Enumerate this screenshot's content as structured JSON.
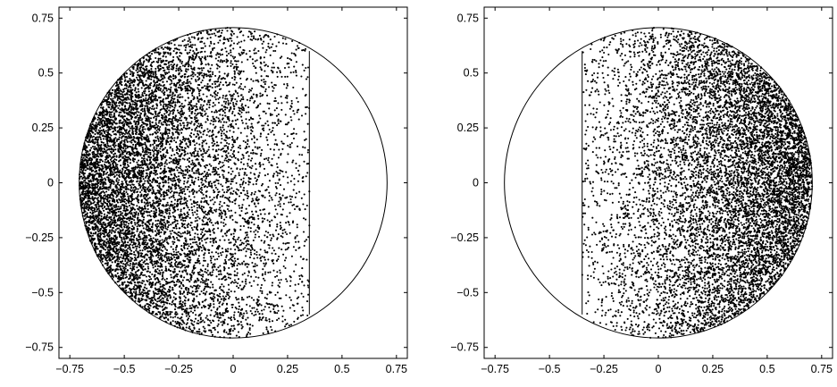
{
  "chart_data": [
    {
      "type": "scatter",
      "xlim": [
        -0.8,
        0.8
      ],
      "ylim": [
        -0.8,
        0.8
      ],
      "xticks": [
        -0.75,
        -0.5,
        -0.25,
        0,
        0.25,
        0.5,
        0.75
      ],
      "yticks": [
        -0.75,
        -0.5,
        -0.25,
        0,
        0.25,
        0.5,
        0.75
      ],
      "xtick_labels": [
        "−0.75",
        "−0.5",
        "−0.25",
        "0",
        "0.25",
        "0.5",
        "0.75"
      ],
      "ytick_labels": [
        "−0.75",
        "−0.5",
        "−0.25",
        "0",
        "0.25",
        "0.5",
        "0.75"
      ],
      "grid": false,
      "circle": {
        "center": [
          0,
          0
        ],
        "radius": 0.707
      },
      "vertical_line": {
        "x": 0.35,
        "y_range": [
          -0.6,
          0.6
        ]
      },
      "points": {
        "count": 9000,
        "region": "inside circle, x <= 0.35",
        "density": "highest near x = -0.707 (left edge), decreasing toward x = 0.35",
        "color": "#000000"
      }
    },
    {
      "type": "scatter",
      "xlim": [
        -0.8,
        0.8
      ],
      "ylim": [
        -0.8,
        0.8
      ],
      "xticks": [
        -0.75,
        -0.5,
        -0.25,
        0,
        0.25,
        0.5,
        0.75
      ],
      "yticks": [
        -0.75,
        -0.5,
        -0.25,
        0,
        0.25,
        0.5,
        0.75
      ],
      "xtick_labels": [
        "−0.75",
        "−0.5",
        "−0.25",
        "0",
        "0.25",
        "0.5",
        "0.75"
      ],
      "ytick_labels": [
        "−0.75",
        "−0.5",
        "−0.25",
        "0",
        "0.25",
        "0.5",
        "0.75"
      ],
      "grid": false,
      "circle": {
        "center": [
          0,
          0
        ],
        "radius": 0.707
      },
      "vertical_line": {
        "x": -0.35,
        "y_range": [
          -0.6,
          0.6
        ]
      },
      "points": {
        "count": 9000,
        "region": "inside circle, x >= -0.35",
        "density": "highest near x = 0.707 (right edge), decreasing toward x = -0.35",
        "color": "#000000"
      }
    }
  ]
}
